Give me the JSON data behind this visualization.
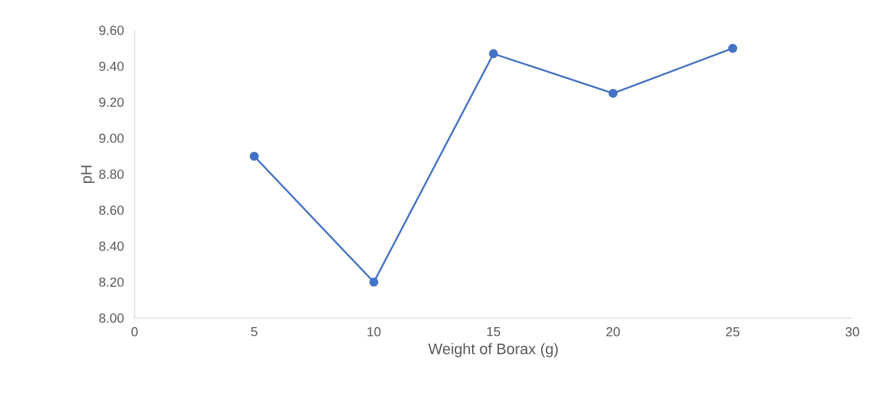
{
  "chart_data": {
    "type": "line",
    "xlabel": "Weight of Borax (g)",
    "ylabel": "pH",
    "x": [
      5,
      10,
      15,
      20,
      25
    ],
    "values": [
      8.9,
      8.2,
      9.47,
      9.25,
      9.5
    ],
    "color": "#4472c4",
    "marker": "circle",
    "line_style": "solid",
    "grid": false,
    "xlim": [
      0,
      30
    ],
    "xticks": [
      0,
      5,
      10,
      15,
      20,
      25,
      30
    ],
    "ylim": [
      8.0,
      9.6
    ],
    "yticks": [
      {
        "value": 8.0,
        "label": "8.00"
      },
      {
        "value": 8.2,
        "label": "8.20"
      },
      {
        "value": 8.4,
        "label": "8.40"
      },
      {
        "value": 8.6,
        "label": "8.60"
      },
      {
        "value": 8.8,
        "label": "8.80"
      },
      {
        "value": 9.0,
        "label": "9.00"
      },
      {
        "value": 9.2,
        "label": "9.20"
      },
      {
        "value": 9.4,
        "label": "9.40"
      },
      {
        "value": 9.6,
        "label": "9.60"
      }
    ]
  }
}
